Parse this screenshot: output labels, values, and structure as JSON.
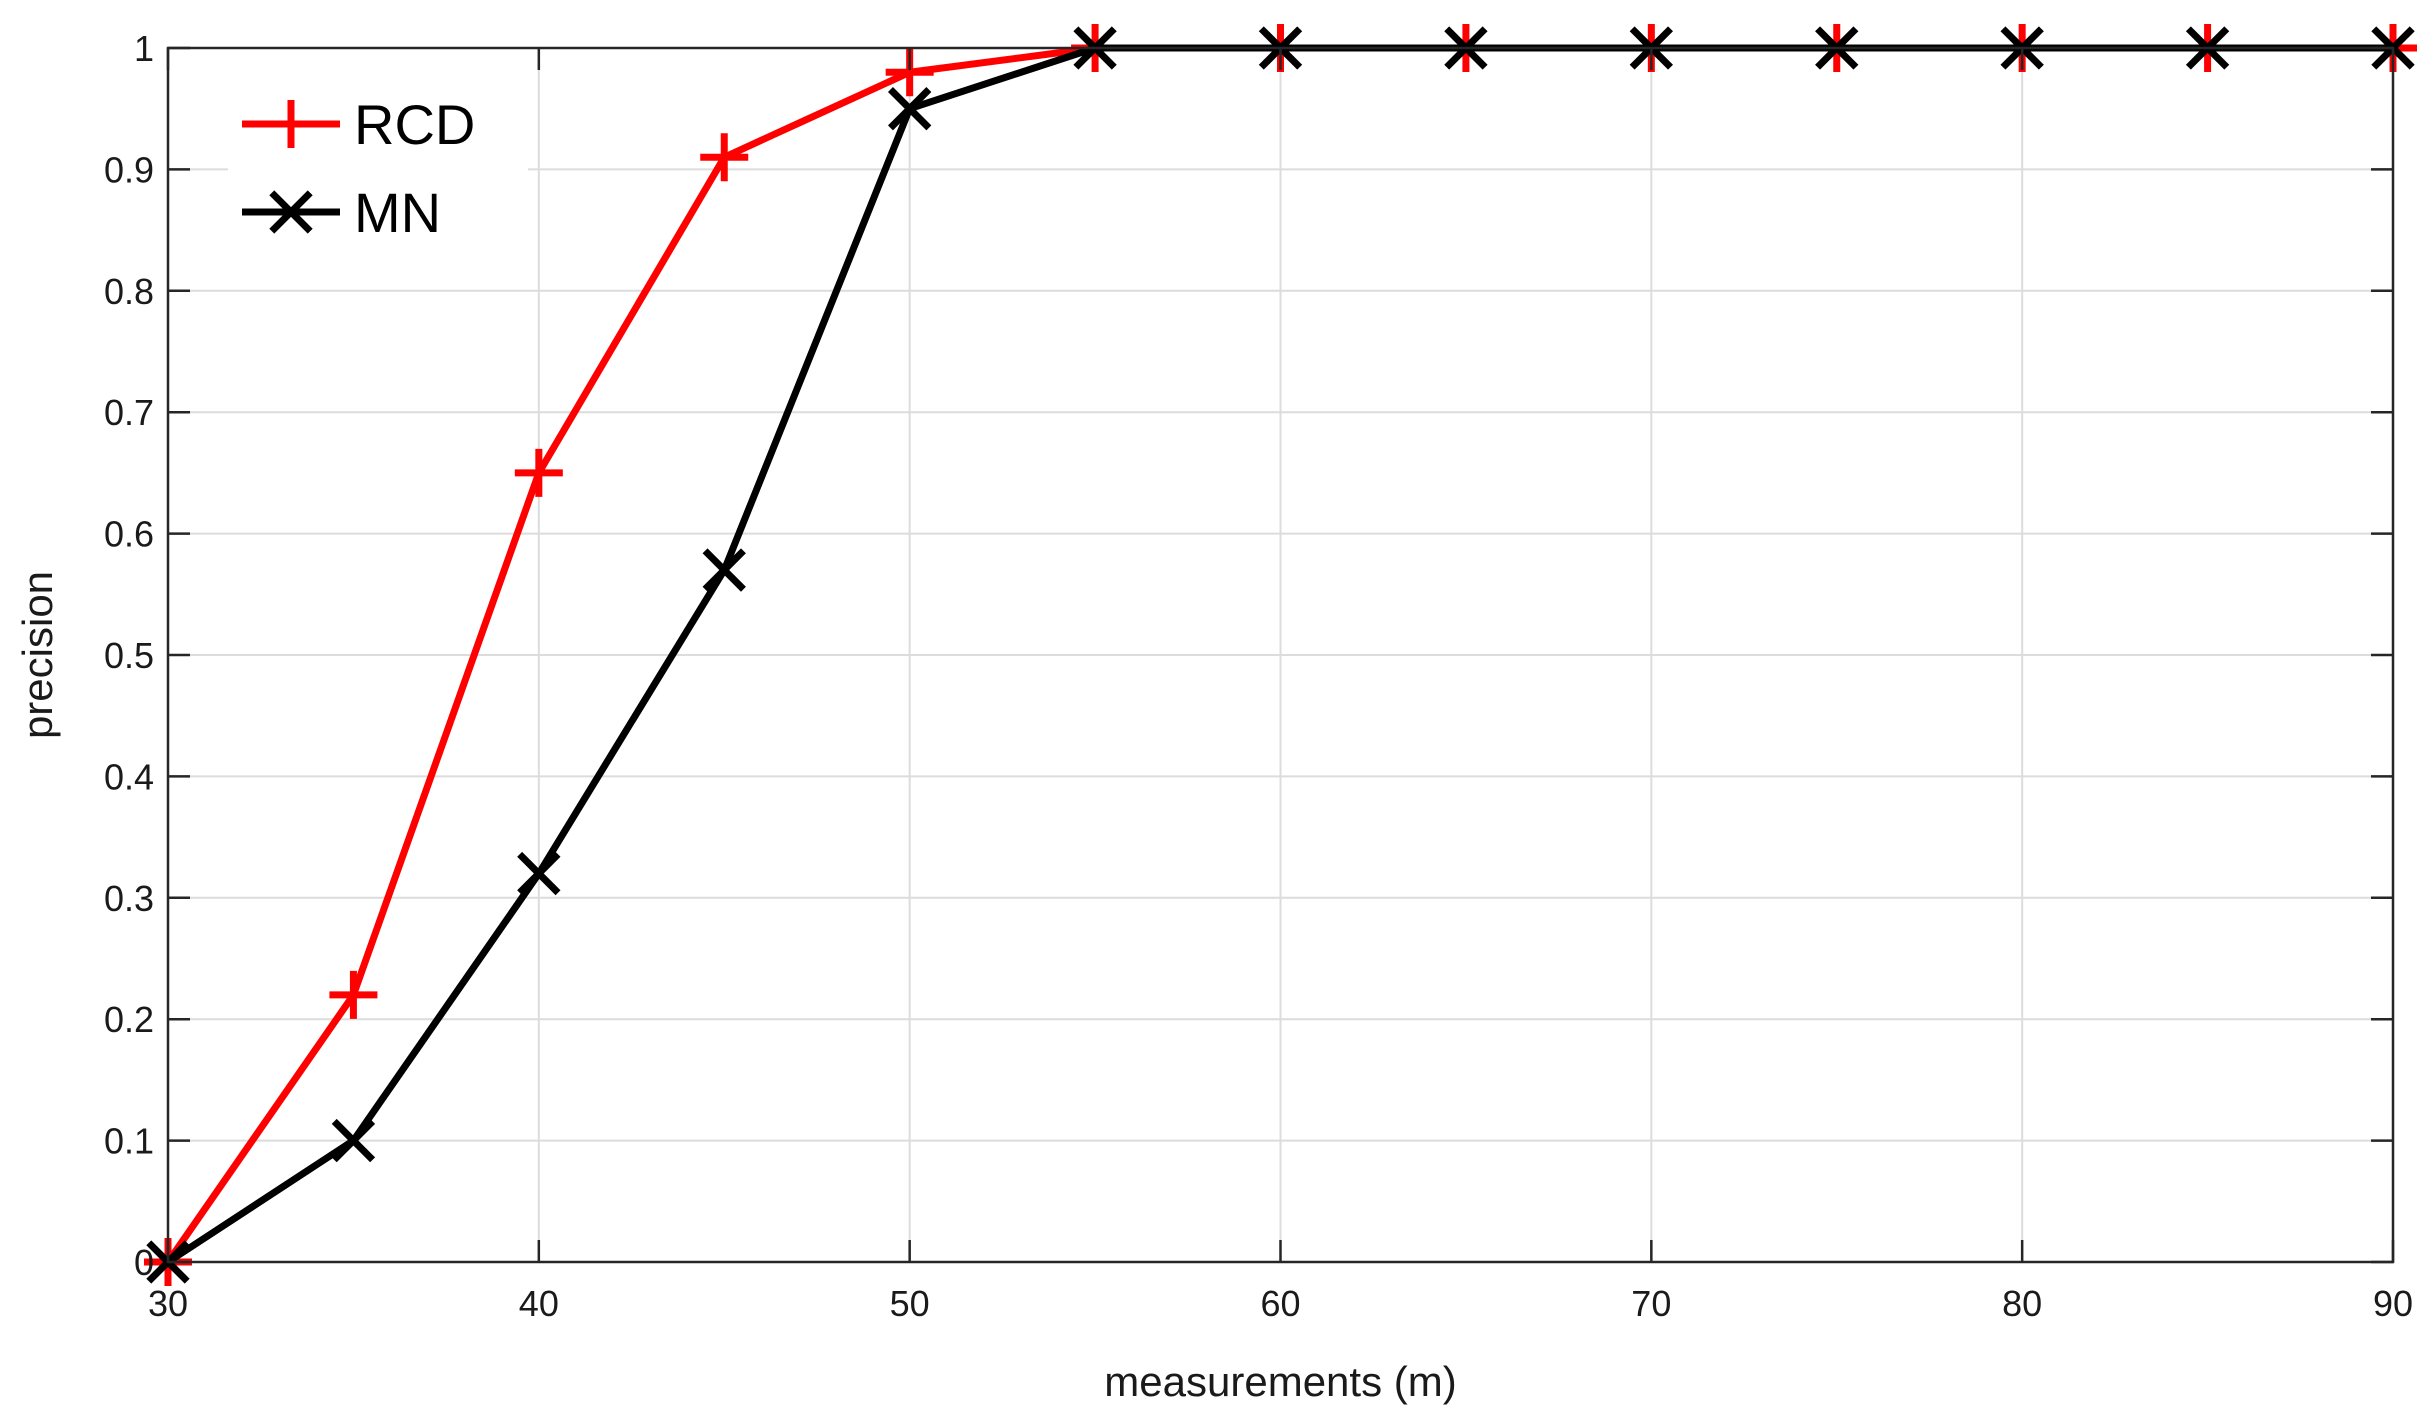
{
  "chart_data": {
    "type": "line",
    "title": "",
    "xlabel": "measurements (m)",
    "ylabel": "precision",
    "xlim": [
      30,
      90
    ],
    "ylim": [
      0,
      1
    ],
    "x_ticks": [
      30,
      40,
      50,
      60,
      70,
      80,
      90
    ],
    "y_ticks": [
      0,
      0.1,
      0.2,
      0.3,
      0.4,
      0.5,
      0.6,
      0.7,
      0.8,
      0.9,
      1
    ],
    "x_tick_labels": [
      "30",
      "40",
      "50",
      "60",
      "70",
      "80",
      "90"
    ],
    "y_tick_labels": [
      "0",
      "0.1",
      "0.2",
      "0.3",
      "0.4",
      "0.5",
      "0.6",
      "0.7",
      "0.8",
      "0.9",
      "1"
    ],
    "grid": true,
    "legend_position": "top-left",
    "x": [
      30,
      35,
      40,
      45,
      50,
      55,
      60,
      65,
      70,
      75,
      80,
      85,
      90
    ],
    "series": [
      {
        "name": "RCD",
        "color": "#ff0000",
        "marker": "plus",
        "values": [
          0,
          0.22,
          0.65,
          0.91,
          0.98,
          1,
          1,
          1,
          1,
          1,
          1,
          1,
          1
        ]
      },
      {
        "name": "MN",
        "color": "#000000",
        "marker": "x",
        "values": [
          0,
          0.1,
          0.32,
          0.57,
          0.95,
          1,
          1,
          1,
          1,
          1,
          1,
          1,
          1
        ]
      }
    ]
  }
}
